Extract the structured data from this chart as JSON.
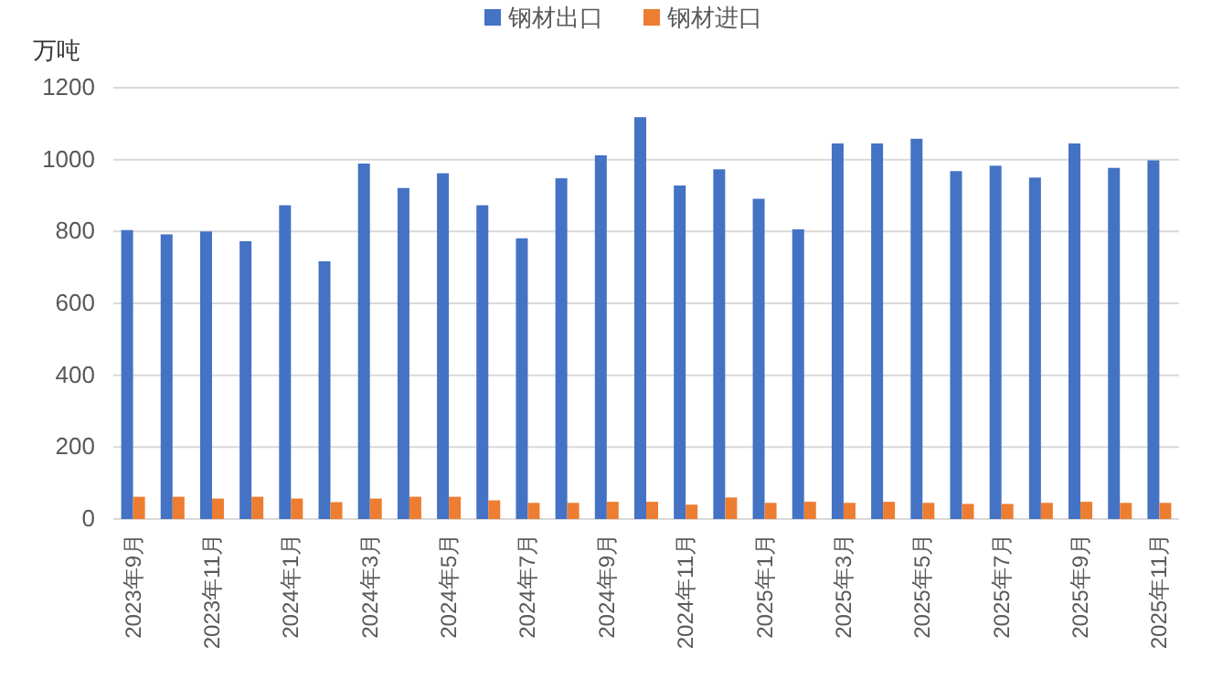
{
  "chart_data": {
    "type": "bar",
    "ylabel": "万吨",
    "categories": [
      "2023年9月",
      null,
      "2023年11月",
      null,
      "2024年1月",
      null,
      "2024年3月",
      null,
      "2024年5月",
      null,
      "2024年7月",
      null,
      "2024年9月",
      null,
      "2024年11月",
      null,
      "2025年1月",
      null,
      "2025年3月",
      null,
      "2025年5月",
      null,
      "2025年7月",
      null,
      "2025年9月",
      null,
      "2025年11月"
    ],
    "series": [
      {
        "name": "钢材出口",
        "color": "#4472c4",
        "values": [
          804,
          792,
          800,
          773,
          873,
          717,
          989,
          921,
          962,
          873,
          781,
          948,
          1012,
          1118,
          928,
          973,
          891,
          806,
          1045,
          1045,
          1058,
          968,
          983,
          950,
          1045,
          977,
          998
        ]
      },
      {
        "name": "钢材进口",
        "color": "#ed7d31",
        "values": [
          62,
          62,
          57,
          62,
          57,
          47,
          57,
          62,
          62,
          52,
          45,
          45,
          48,
          48,
          40,
          60,
          45,
          48,
          45,
          48,
          45,
          42,
          42,
          45,
          48,
          45,
          45
        ]
      }
    ],
    "ylim": [
      0,
      1200
    ],
    "yticks": [
      0,
      200,
      400,
      600,
      800,
      1000,
      1200
    ],
    "grid": "y",
    "legend": "top"
  }
}
